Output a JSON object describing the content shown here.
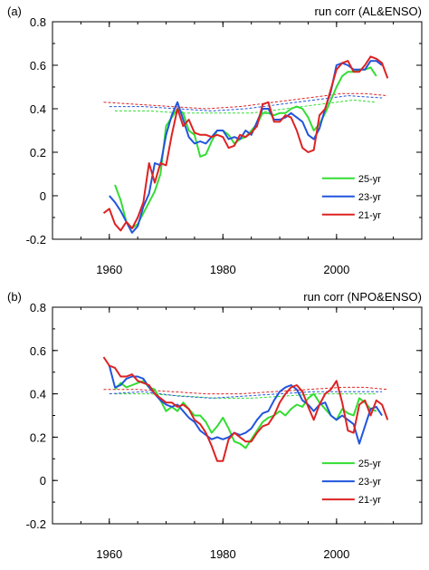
{
  "chart_data": [
    {
      "type": "line",
      "panel_label": "(a)",
      "title": "run corr (AL&ENSO)",
      "xlim": [
        1950,
        2015
      ],
      "ylim": [
        -0.2,
        0.8
      ],
      "xticks": [
        1960,
        1980,
        2000
      ],
      "yticks": [
        -0.2,
        0,
        0.2,
        0.4,
        0.6,
        0.8
      ],
      "ytick_labels": [
        "-0.2",
        "0",
        "0.2",
        "0.4",
        "0.6",
        "0.8"
      ],
      "xtick_labels": [
        "1960",
        "1980",
        "2000"
      ],
      "grid": false,
      "legend_position": "lower-right",
      "series": [
        {
          "name": "25-yr",
          "color": "#33dd33",
          "x": [
            1961,
            1962,
            1963,
            1964,
            1965,
            1966,
            1967,
            1968,
            1969,
            1970,
            1971,
            1972,
            1973,
            1974,
            1975,
            1976,
            1977,
            1978,
            1979,
            1980,
            1981,
            1982,
            1983,
            1984,
            1985,
            1986,
            1987,
            1988,
            1989,
            1990,
            1991,
            1992,
            1993,
            1994,
            1995,
            1996,
            1997,
            1998,
            1999,
            2000,
            2001,
            2002,
            2003,
            2004,
            2005,
            2006,
            2007
          ],
          "y": [
            0.05,
            -0.02,
            -0.12,
            -0.15,
            -0.13,
            -0.08,
            -0.03,
            0.02,
            0.1,
            0.32,
            0.36,
            0.4,
            0.38,
            0.3,
            0.28,
            0.18,
            0.19,
            0.25,
            0.3,
            0.3,
            0.28,
            0.24,
            0.26,
            0.27,
            0.3,
            0.33,
            0.38,
            0.38,
            0.37,
            0.38,
            0.38,
            0.4,
            0.41,
            0.4,
            0.36,
            0.3,
            0.33,
            0.38,
            0.44,
            0.5,
            0.55,
            0.57,
            0.57,
            0.58,
            0.58,
            0.59,
            0.55
          ]
        },
        {
          "name": "23-yr",
          "color": "#2255dd",
          "x": [
            1960,
            1961,
            1962,
            1963,
            1964,
            1965,
            1966,
            1967,
            1968,
            1969,
            1970,
            1971,
            1972,
            1973,
            1974,
            1975,
            1976,
            1977,
            1978,
            1979,
            1980,
            1981,
            1982,
            1983,
            1984,
            1985,
            1986,
            1987,
            1988,
            1989,
            1990,
            1991,
            1992,
            1993,
            1994,
            1995,
            1996,
            1997,
            1998,
            1999,
            2000,
            2001,
            2002,
            2003,
            2004,
            2005,
            2006,
            2007,
            2008
          ],
          "y": [
            0.0,
            -0.03,
            -0.07,
            -0.12,
            -0.17,
            -0.14,
            -0.05,
            0.01,
            0.15,
            0.14,
            0.28,
            0.37,
            0.43,
            0.35,
            0.27,
            0.24,
            0.25,
            0.24,
            0.27,
            0.3,
            0.3,
            0.26,
            0.27,
            0.26,
            0.3,
            0.28,
            0.34,
            0.4,
            0.4,
            0.35,
            0.35,
            0.36,
            0.38,
            0.36,
            0.34,
            0.28,
            0.26,
            0.31,
            0.4,
            0.48,
            0.6,
            0.61,
            0.6,
            0.58,
            0.58,
            0.58,
            0.62,
            0.62,
            0.6
          ]
        },
        {
          "name": "21-yr",
          "color": "#dd2222",
          "x": [
            1959,
            1960,
            1961,
            1962,
            1963,
            1964,
            1965,
            1966,
            1967,
            1968,
            1969,
            1970,
            1971,
            1972,
            1973,
            1974,
            1975,
            1976,
            1977,
            1978,
            1979,
            1980,
            1981,
            1982,
            1983,
            1984,
            1985,
            1986,
            1987,
            1988,
            1989,
            1990,
            1991,
            1992,
            1993,
            1994,
            1995,
            1996,
            1997,
            1998,
            1999,
            2000,
            2001,
            2002,
            2003,
            2004,
            2005,
            2006,
            2007,
            2008,
            2009
          ],
          "y": [
            -0.08,
            -0.06,
            -0.13,
            -0.16,
            -0.12,
            -0.15,
            -0.1,
            -0.03,
            0.15,
            0.06,
            0.15,
            0.14,
            0.28,
            0.4,
            0.32,
            0.35,
            0.29,
            0.28,
            0.28,
            0.27,
            0.28,
            0.27,
            0.22,
            0.23,
            0.28,
            0.27,
            0.29,
            0.32,
            0.42,
            0.43,
            0.34,
            0.34,
            0.37,
            0.36,
            0.3,
            0.22,
            0.2,
            0.21,
            0.37,
            0.4,
            0.49,
            0.58,
            0.61,
            0.62,
            0.57,
            0.57,
            0.6,
            0.64,
            0.63,
            0.61,
            0.54
          ]
        },
        {
          "name": "",
          "color": "#33dd33",
          "dashed": true,
          "x": [
            1961,
            1967,
            1973,
            1979,
            1985,
            1991,
            1997,
            2003,
            2007
          ],
          "y": [
            0.39,
            0.39,
            0.38,
            0.38,
            0.38,
            0.4,
            0.42,
            0.44,
            0.43
          ]
        },
        {
          "name": "",
          "color": "#2255dd",
          "dashed": true,
          "x": [
            1960,
            1966,
            1972,
            1978,
            1984,
            1990,
            1996,
            2002,
            2008
          ],
          "y": [
            0.41,
            0.41,
            0.4,
            0.39,
            0.4,
            0.42,
            0.44,
            0.46,
            0.45
          ]
        },
        {
          "name": "",
          "color": "#dd2222",
          "dashed": true,
          "x": [
            1959,
            1965,
            1971,
            1977,
            1983,
            1989,
            1995,
            2001,
            2005,
            2009
          ],
          "y": [
            0.43,
            0.42,
            0.41,
            0.4,
            0.41,
            0.43,
            0.45,
            0.47,
            0.47,
            0.46
          ]
        }
      ]
    },
    {
      "type": "line",
      "panel_label": "(b)",
      "title": "run corr (NPO&ENSO)",
      "xlim": [
        1950,
        2015
      ],
      "ylim": [
        -0.2,
        0.8
      ],
      "xticks": [
        1960,
        1980,
        2000
      ],
      "yticks": [
        -0.2,
        0,
        0.2,
        0.4,
        0.6,
        0.8
      ],
      "ytick_labels": [
        "-0.2",
        "0",
        "0.2",
        "0.4",
        "0.6",
        "0.8"
      ],
      "xtick_labels": [
        "1960",
        "1980",
        "2000"
      ],
      "grid": false,
      "legend_position": "lower-right",
      "series": [
        {
          "name": "25-yr",
          "color": "#33dd33",
          "x": [
            1961,
            1962,
            1963,
            1964,
            1965,
            1966,
            1967,
            1968,
            1969,
            1970,
            1971,
            1972,
            1973,
            1974,
            1975,
            1976,
            1977,
            1978,
            1979,
            1980,
            1981,
            1982,
            1983,
            1984,
            1985,
            1986,
            1987,
            1988,
            1989,
            1990,
            1991,
            1992,
            1993,
            1994,
            1995,
            1996,
            1997,
            1998,
            1999,
            2000,
            2001,
            2002,
            2003,
            2004,
            2005,
            2006,
            2007
          ],
          "y": [
            0.42,
            0.45,
            0.43,
            0.44,
            0.45,
            0.46,
            0.43,
            0.42,
            0.37,
            0.32,
            0.34,
            0.32,
            0.36,
            0.33,
            0.3,
            0.3,
            0.27,
            0.22,
            0.25,
            0.29,
            0.24,
            0.18,
            0.17,
            0.15,
            0.19,
            0.23,
            0.27,
            0.29,
            0.3,
            0.32,
            0.3,
            0.33,
            0.35,
            0.34,
            0.38,
            0.4,
            0.36,
            0.33,
            0.3,
            0.28,
            0.33,
            0.31,
            0.3,
            0.38,
            0.36,
            0.33,
            0.32
          ]
        },
        {
          "name": "23-yr",
          "color": "#2255dd",
          "x": [
            1960,
            1961,
            1962,
            1963,
            1964,
            1965,
            1966,
            1967,
            1968,
            1969,
            1970,
            1971,
            1972,
            1973,
            1974,
            1975,
            1976,
            1977,
            1978,
            1979,
            1980,
            1981,
            1982,
            1983,
            1984,
            1985,
            1986,
            1987,
            1988,
            1989,
            1990,
            1991,
            1992,
            1993,
            1994,
            1995,
            1996,
            1997,
            1998,
            1999,
            2000,
            2001,
            2002,
            2003,
            2004,
            2005,
            2006,
            2007,
            2008
          ],
          "y": [
            0.53,
            0.43,
            0.44,
            0.47,
            0.48,
            0.48,
            0.47,
            0.43,
            0.4,
            0.37,
            0.35,
            0.34,
            0.35,
            0.32,
            0.29,
            0.27,
            0.23,
            0.21,
            0.19,
            0.2,
            0.19,
            0.2,
            0.22,
            0.21,
            0.22,
            0.24,
            0.28,
            0.31,
            0.32,
            0.37,
            0.41,
            0.43,
            0.44,
            0.42,
            0.37,
            0.35,
            0.32,
            0.35,
            0.36,
            0.3,
            0.28,
            0.3,
            0.28,
            0.26,
            0.17,
            0.25,
            0.33,
            0.34,
            0.3
          ]
        },
        {
          "name": "21-yr",
          "color": "#dd2222",
          "x": [
            1959,
            1960,
            1961,
            1962,
            1963,
            1964,
            1965,
            1966,
            1967,
            1968,
            1969,
            1970,
            1971,
            1972,
            1973,
            1974,
            1975,
            1976,
            1977,
            1978,
            1979,
            1980,
            1981,
            1982,
            1983,
            1984,
            1985,
            1986,
            1987,
            1988,
            1989,
            1990,
            1991,
            1992,
            1993,
            1994,
            1995,
            1996,
            1997,
            1998,
            1999,
            2000,
            2001,
            2002,
            2003,
            2004,
            2005,
            2006,
            2007,
            2008,
            2009
          ],
          "y": [
            0.57,
            0.53,
            0.52,
            0.48,
            0.48,
            0.49,
            0.46,
            0.45,
            0.44,
            0.4,
            0.38,
            0.36,
            0.36,
            0.34,
            0.35,
            0.33,
            0.28,
            0.26,
            0.22,
            0.16,
            0.09,
            0.09,
            0.19,
            0.22,
            0.2,
            0.18,
            0.18,
            0.22,
            0.25,
            0.26,
            0.3,
            0.36,
            0.4,
            0.43,
            0.44,
            0.41,
            0.34,
            0.28,
            0.35,
            0.4,
            0.42,
            0.46,
            0.36,
            0.23,
            0.22,
            0.35,
            0.37,
            0.3,
            0.37,
            0.35,
            0.28
          ]
        },
        {
          "name": "",
          "color": "#33dd33",
          "dashed": true,
          "x": [
            1961,
            1967,
            1973,
            1979,
            1985,
            1991,
            1997,
            2003,
            2007
          ],
          "y": [
            0.4,
            0.4,
            0.39,
            0.38,
            0.38,
            0.39,
            0.4,
            0.4,
            0.4
          ]
        },
        {
          "name": "",
          "color": "#2255dd",
          "dashed": true,
          "x": [
            1960,
            1966,
            1972,
            1978,
            1984,
            1990,
            1996,
            2002,
            2008
          ],
          "y": [
            0.4,
            0.41,
            0.39,
            0.38,
            0.39,
            0.4,
            0.41,
            0.41,
            0.41
          ]
        },
        {
          "name": "",
          "color": "#dd2222",
          "dashed": true,
          "x": [
            1959,
            1965,
            1971,
            1977,
            1983,
            1989,
            1995,
            2001,
            2005,
            2009
          ],
          "y": [
            0.42,
            0.42,
            0.41,
            0.4,
            0.4,
            0.41,
            0.42,
            0.43,
            0.43,
            0.42
          ]
        }
      ]
    }
  ]
}
